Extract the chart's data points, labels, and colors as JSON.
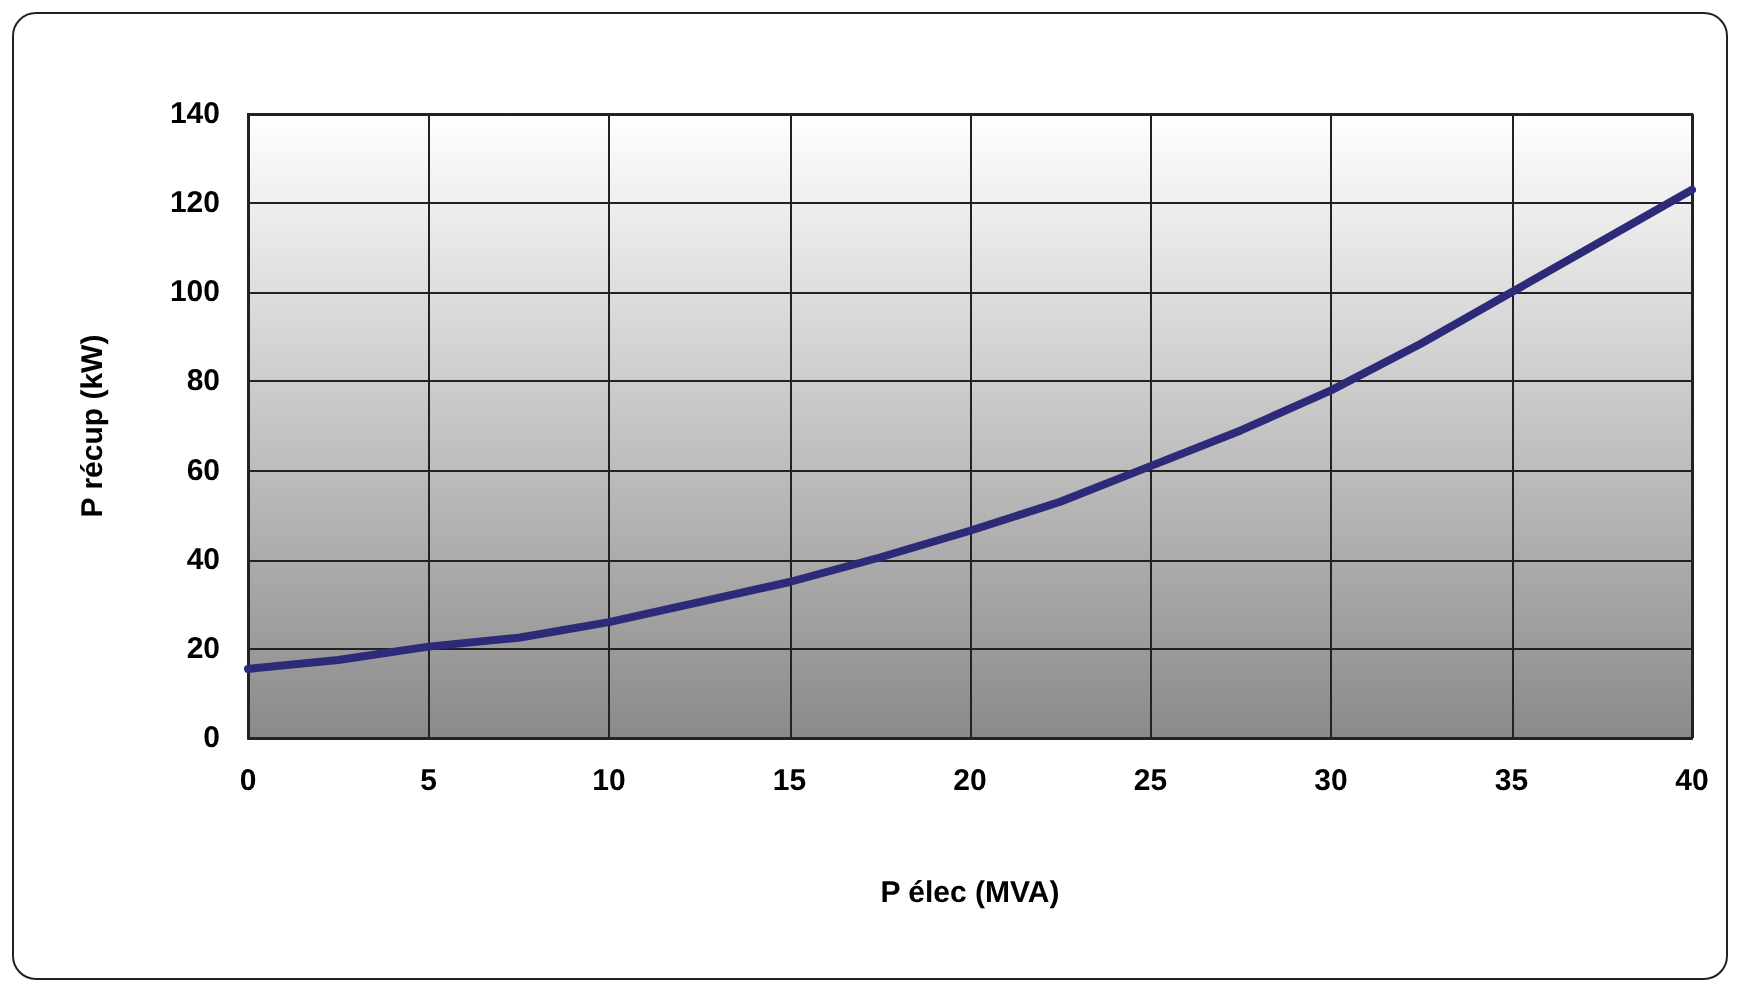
{
  "chart_data": {
    "type": "line",
    "xlabel": "P élec (MVA)",
    "ylabel": "P récup (kW)",
    "x": [
      0,
      2.5,
      5,
      7.5,
      10,
      12.5,
      15,
      17.5,
      20,
      22.5,
      25,
      27.5,
      30,
      32.5,
      35,
      37.5,
      40
    ],
    "series": [
      {
        "color": "#2e2a7a",
        "values": [
          15.5,
          17.5,
          20.5,
          22.5,
          26,
          30.5,
          35,
          40.5,
          46.5,
          53,
          61,
          69,
          78,
          88.5,
          100,
          111.5,
          123
        ]
      }
    ],
    "xlim": [
      0,
      40
    ],
    "xticks": [
      0,
      5,
      10,
      15,
      20,
      25,
      30,
      35,
      40
    ],
    "ylim": [
      0,
      140
    ],
    "yticks": [
      0,
      20,
      40,
      60,
      80,
      100,
      120,
      140
    ],
    "grid": true,
    "marker": "none",
    "line_style": "solid"
  }
}
